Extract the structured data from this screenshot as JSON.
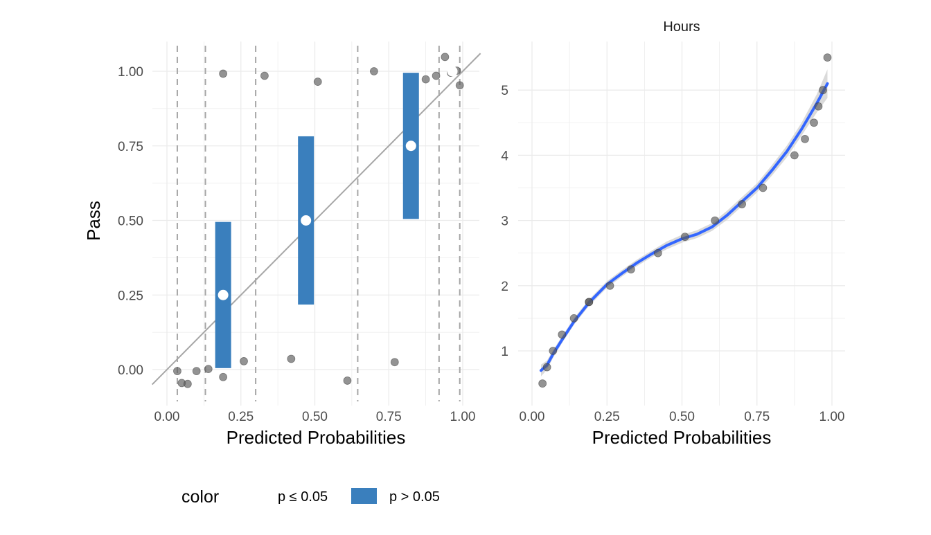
{
  "chart_data": [
    {
      "type": "scatter",
      "panel": "binned residual / calibration plot",
      "title": "",
      "xlabel": "Predicted Probabilities",
      "ylabel": "Pass",
      "xlim": [
        -0.05,
        1.06
      ],
      "ylim": [
        -0.12,
        1.1
      ],
      "xticks": [
        "0.00",
        "0.25",
        "0.50",
        "0.75",
        "1.00"
      ],
      "xtick_values": [
        0,
        0.25,
        0.5,
        0.75,
        1.0
      ],
      "yticks": [
        "0.00",
        "0.25",
        "0.50",
        "0.75",
        "1.00"
      ],
      "ytick_values": [
        0,
        0.25,
        0.5,
        0.75,
        1.0
      ],
      "grid": true,
      "bin_boundaries": [
        0.035,
        0.13,
        0.3,
        0.645,
        0.92,
        0.99
      ],
      "diagonal_line": {
        "from": [
          -0.05,
          -0.05
        ],
        "to": [
          1.06,
          1.06
        ],
        "color": "#a6a6a6"
      },
      "jittered_points": [
        {
          "x": 0.035,
          "y": -0.005
        },
        {
          "x": 0.05,
          "y": -0.045
        },
        {
          "x": 0.07,
          "y": -0.048
        },
        {
          "x": 0.1,
          "y": -0.005
        },
        {
          "x": 0.14,
          "y": 0.002
        },
        {
          "x": 0.19,
          "y": -0.025
        },
        {
          "x": 0.19,
          "y": 0.992
        },
        {
          "x": 0.26,
          "y": 0.028
        },
        {
          "x": 0.33,
          "y": 0.985
        },
        {
          "x": 0.42,
          "y": 0.036
        },
        {
          "x": 0.51,
          "y": 0.965
        },
        {
          "x": 0.61,
          "y": -0.037
        },
        {
          "x": 0.7,
          "y": 1.0
        },
        {
          "x": 0.77,
          "y": 0.025
        },
        {
          "x": 0.875,
          "y": 0.973
        },
        {
          "x": 0.91,
          "y": 0.985
        },
        {
          "x": 0.94,
          "y": 1.048
        },
        {
          "x": 0.96,
          "y": 0.995
        },
        {
          "x": 0.98,
          "y": 1.002
        },
        {
          "x": 0.99,
          "y": 0.953
        }
      ],
      "bins": [
        {
          "x": 0.19,
          "mean": 0.25,
          "lower": 0.005,
          "upper": 0.495,
          "significant": "p > 0.05"
        },
        {
          "x": 0.47,
          "mean": 0.5,
          "lower": 0.218,
          "upper": 0.782,
          "significant": "p > 0.05"
        },
        {
          "x": 0.825,
          "mean": 0.75,
          "lower": 0.505,
          "upper": 0.995,
          "significant": "p > 0.05"
        },
        {
          "x": 0.965,
          "mean": 1.0,
          "lower": 1.0,
          "upper": 1.0,
          "significant": "p > 0.05"
        }
      ],
      "colors": {
        "bar": "#3a7fbd",
        "points": "#595959",
        "dashed": "#a6a6a6",
        "grid": "#ebebeb"
      }
    },
    {
      "type": "scatter",
      "panel": "Hours vs predicted probabilities",
      "title": "Hours",
      "xlabel": "Predicted Probabilities",
      "ylabel": "",
      "xlim": [
        -0.01,
        1.05
      ],
      "ylim": [
        0.3,
        5.75
      ],
      "xticks": [
        "0.00",
        "0.25",
        "0.50",
        "0.75",
        "1.00"
      ],
      "xtick_values": [
        0,
        0.25,
        0.5,
        0.75,
        1.0
      ],
      "yticks": [
        "1",
        "2",
        "3",
        "4",
        "5"
      ],
      "ytick_values": [
        1,
        2,
        3,
        4,
        5
      ],
      "grid": true,
      "points": [
        {
          "x": 0.035,
          "y": 0.5
        },
        {
          "x": 0.05,
          "y": 0.75
        },
        {
          "x": 0.07,
          "y": 1.0
        },
        {
          "x": 0.1,
          "y": 1.25
        },
        {
          "x": 0.14,
          "y": 1.5
        },
        {
          "x": 0.19,
          "y": 1.75
        },
        {
          "x": 0.19,
          "y": 1.75
        },
        {
          "x": 0.26,
          "y": 2.0
        },
        {
          "x": 0.33,
          "y": 2.25
        },
        {
          "x": 0.42,
          "y": 2.5
        },
        {
          "x": 0.51,
          "y": 2.75
        },
        {
          "x": 0.61,
          "y": 3.0
        },
        {
          "x": 0.7,
          "y": 3.25
        },
        {
          "x": 0.77,
          "y": 3.5
        },
        {
          "x": 0.875,
          "y": 4.0
        },
        {
          "x": 0.91,
          "y": 4.25
        },
        {
          "x": 0.94,
          "y": 4.5
        },
        {
          "x": 0.955,
          "y": 4.75
        },
        {
          "x": 0.97,
          "y": 5.0
        },
        {
          "x": 0.985,
          "y": 5.5
        }
      ],
      "smooth": {
        "x": [
          0.03,
          0.05,
          0.07,
          0.1,
          0.14,
          0.19,
          0.25,
          0.3,
          0.35,
          0.4,
          0.45,
          0.5,
          0.55,
          0.6,
          0.65,
          0.7,
          0.75,
          0.8,
          0.85,
          0.9,
          0.95,
          0.985
        ],
        "y": [
          0.7,
          0.78,
          0.95,
          1.17,
          1.45,
          1.74,
          2.02,
          2.19,
          2.35,
          2.49,
          2.62,
          2.72,
          2.79,
          2.9,
          3.08,
          3.29,
          3.5,
          3.77,
          4.06,
          4.41,
          4.8,
          5.1
        ],
        "band": [
          0.09,
          0.07,
          0.06,
          0.05,
          0.05,
          0.05,
          0.05,
          0.05,
          0.05,
          0.05,
          0.06,
          0.06,
          0.06,
          0.06,
          0.07,
          0.07,
          0.07,
          0.08,
          0.09,
          0.1,
          0.14,
          0.22
        ]
      },
      "colors": {
        "line": "#3366ff",
        "band": "#d6d6d6",
        "points": "#595959",
        "grid": "#ebebeb"
      }
    }
  ],
  "legend": {
    "title": "color",
    "items": [
      {
        "label": "p ≤ 0.05",
        "swatch": "none"
      },
      {
        "label": "p > 0.05",
        "swatch": "#3a7fbd"
      }
    ]
  }
}
